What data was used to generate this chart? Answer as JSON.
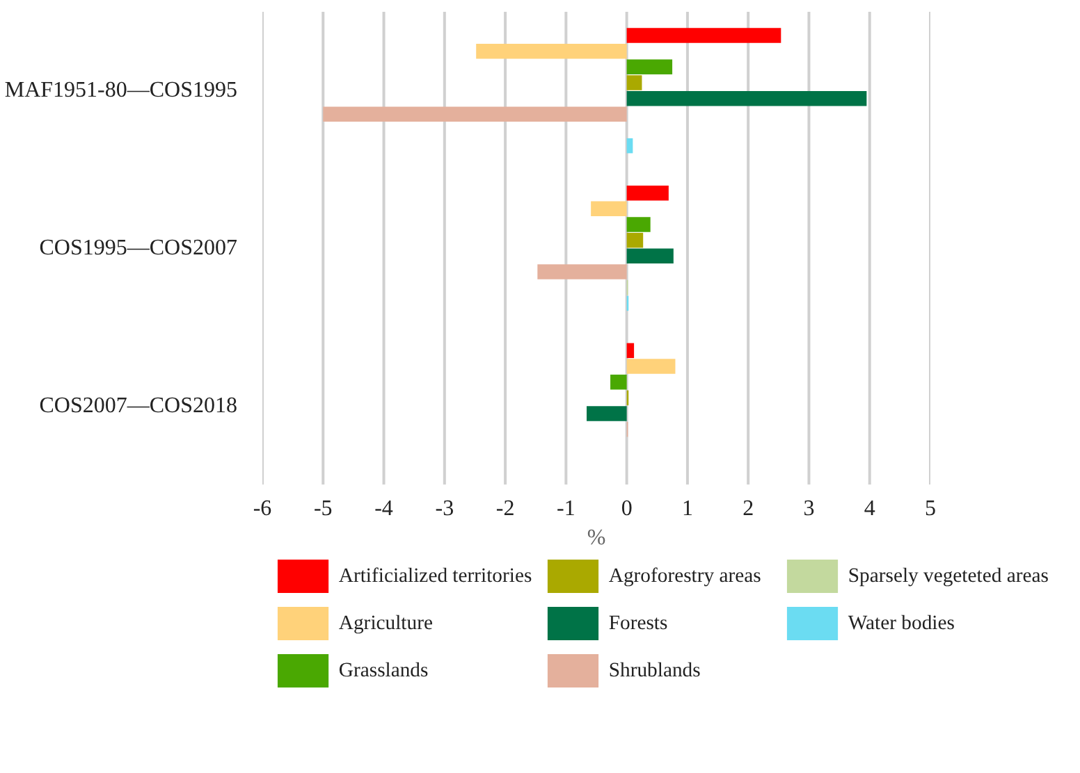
{
  "chart_data": {
    "type": "bar",
    "orientation": "horizontal",
    "xlabel": "%",
    "categories": [
      "MAF1951-80—COS1995",
      "COS1995—COS2007",
      "COS2007—COS2018"
    ],
    "xlim": [
      -6,
      5
    ],
    "xticks": [
      -6,
      -5,
      -4,
      -3,
      -2,
      -1,
      0,
      1,
      2,
      3,
      4,
      5
    ],
    "grid": "x",
    "legend": "bottom",
    "series": [
      {
        "name": "Artificialized territories",
        "color": "#ff0000",
        "values": [
          2.54,
          0.69,
          0.12
        ]
      },
      {
        "name": "Agriculture",
        "color": "#ffd27a",
        "values": [
          -2.48,
          -0.59,
          0.8
        ]
      },
      {
        "name": "Grasslands",
        "color": "#4aa802",
        "values": [
          0.75,
          0.39,
          -0.27
        ]
      },
      {
        "name": "Agroforestry areas",
        "color": "#aaa900",
        "values": [
          0.25,
          0.27,
          0.03
        ]
      },
      {
        "name": "Forests",
        "color": "#007347",
        "values": [
          3.95,
          0.77,
          -0.66
        ]
      },
      {
        "name": "Shrublands",
        "color": "#e4b09c",
        "values": [
          -5.0,
          -1.47,
          0.02
        ]
      },
      {
        "name": "Sparsely vegeteted areas",
        "color": "#c3d99e",
        "values": [
          0,
          0.02,
          0
        ]
      },
      {
        "name": "Water bodies",
        "color": "#6bdcf2",
        "values": [
          0.1,
          0.03,
          0
        ]
      }
    ]
  }
}
